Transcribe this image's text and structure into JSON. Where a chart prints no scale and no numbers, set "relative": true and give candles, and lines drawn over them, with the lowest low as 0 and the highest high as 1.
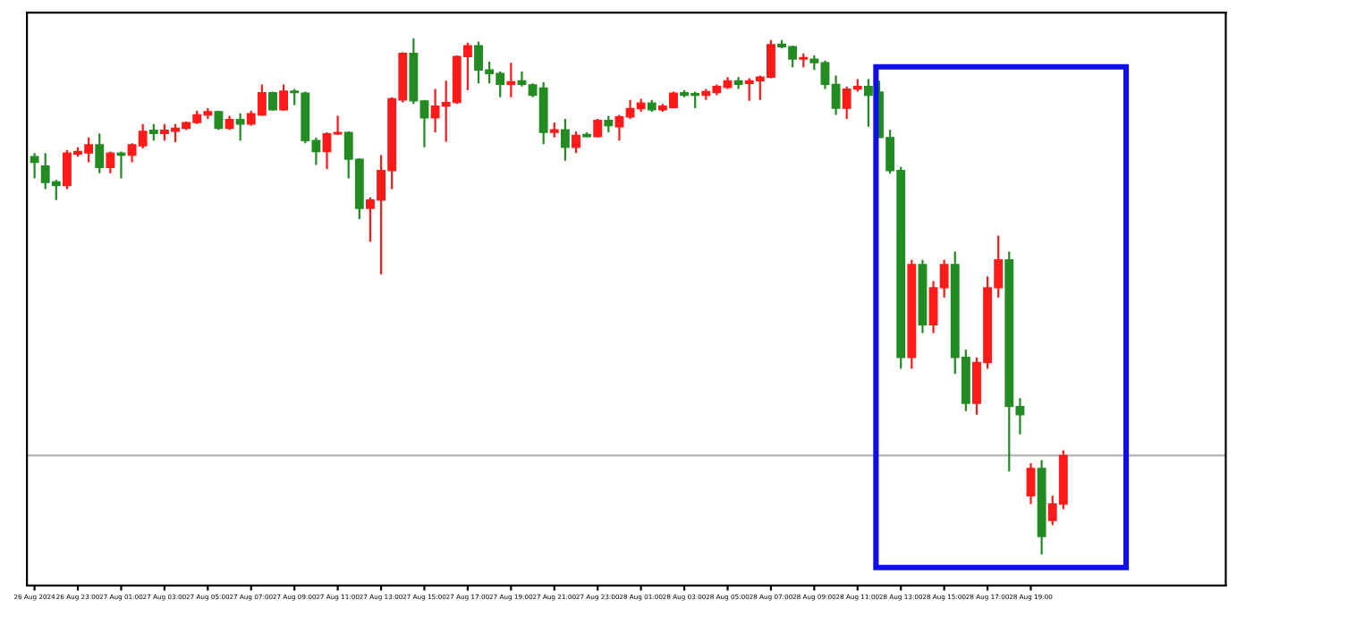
{
  "chart_data": {
    "type": "candlestick",
    "relative": true,
    "categories": [
      "26 Aug 2024",
      null,
      null,
      null,
      "26 Aug 23:00",
      null,
      null,
      null,
      "27 Aug 01:00",
      null,
      null,
      null,
      "27 Aug 03:00",
      null,
      null,
      null,
      "27 Aug 05:00",
      null,
      null,
      null,
      "27 Aug 07:00",
      null,
      null,
      null,
      "27 Aug 09:00",
      null,
      null,
      null,
      "27 Aug 11:00",
      null,
      null,
      null,
      "27 Aug 13:00",
      null,
      null,
      null,
      "27 Aug 15:00",
      null,
      null,
      null,
      "27 Aug 17:00",
      null,
      null,
      null,
      "27 Aug 19:00",
      null,
      null,
      null,
      "27 Aug 21:00",
      null,
      null,
      null,
      "27 Aug 23:00",
      null,
      null,
      null,
      "28 Aug 01:00",
      null,
      null,
      null,
      "28 Aug 03:00",
      null,
      null,
      null,
      "28 Aug 05:00",
      null,
      null,
      null,
      "28 Aug 07:00",
      null,
      null,
      null,
      "28 Aug 09:00",
      null,
      null,
      null,
      "28 Aug 11:00",
      null,
      null,
      null,
      "28 Aug 13:00",
      null,
      null,
      null,
      "28 Aug 15:00",
      null,
      null,
      null,
      "28 Aug 17:00",
      null,
      null,
      null,
      "28 Aug 19:00",
      null,
      null,
      null
    ],
    "ohlc": [
      [
        0.771,
        0.778,
        0.729,
        0.76
      ],
      [
        0.753,
        0.778,
        0.708,
        0.721
      ],
      [
        0.722,
        0.726,
        0.687,
        0.715
      ],
      [
        0.715,
        0.784,
        0.708,
        0.778
      ],
      [
        0.776,
        0.789,
        0.771,
        0.781
      ],
      [
        0.778,
        0.808,
        0.76,
        0.794
      ],
      [
        0.794,
        0.816,
        0.739,
        0.75
      ],
      [
        0.75,
        0.781,
        0.739,
        0.778
      ],
      [
        0.778,
        0.781,
        0.729,
        0.774
      ],
      [
        0.774,
        0.797,
        0.76,
        0.794
      ],
      [
        0.792,
        0.834,
        0.787,
        0.82
      ],
      [
        0.822,
        0.834,
        0.802,
        0.816
      ],
      [
        0.816,
        0.834,
        0.802,
        0.822
      ],
      [
        0.82,
        0.834,
        0.799,
        0.826
      ],
      [
        0.826,
        0.839,
        0.823,
        0.837
      ],
      [
        0.837,
        0.86,
        0.834,
        0.852
      ],
      [
        0.852,
        0.865,
        0.844,
        0.858
      ],
      [
        0.858,
        0.86,
        0.823,
        0.826
      ],
      [
        0.826,
        0.85,
        0.823,
        0.843
      ],
      [
        0.843,
        0.855,
        0.802,
        0.834
      ],
      [
        0.834,
        0.86,
        0.831,
        0.854
      ],
      [
        0.852,
        0.911,
        0.85,
        0.895
      ],
      [
        0.895,
        0.897,
        0.86,
        0.862
      ],
      [
        0.862,
        0.911,
        0.86,
        0.898
      ],
      [
        0.898,
        0.902,
        0.871,
        0.895
      ],
      [
        0.894,
        0.897,
        0.797,
        0.802
      ],
      [
        0.802,
        0.808,
        0.755,
        0.781
      ],
      [
        0.781,
        0.818,
        0.747,
        0.815
      ],
      [
        0.815,
        0.85,
        0.813,
        0.818
      ],
      [
        0.818,
        0.82,
        0.729,
        0.766
      ],
      [
        0.766,
        0.768,
        0.65,
        0.671
      ],
      [
        0.671,
        0.692,
        0.606,
        0.687
      ],
      [
        0.687,
        0.774,
        0.543,
        0.744
      ],
      [
        0.744,
        0.886,
        0.708,
        0.883
      ],
      [
        0.881,
        0.973,
        0.876,
        0.971
      ],
      [
        0.971,
        1.0,
        0.873,
        0.879
      ],
      [
        0.879,
        0.881,
        0.789,
        0.846
      ],
      [
        0.846,
        0.902,
        0.818,
        0.869
      ],
      [
        0.869,
        0.918,
        0.8,
        0.876
      ],
      [
        0.876,
        0.967,
        0.873,
        0.965
      ],
      [
        0.965,
        0.992,
        0.9,
        0.986
      ],
      [
        0.986,
        0.994,
        0.913,
        0.939
      ],
      [
        0.939,
        0.955,
        0.913,
        0.932
      ],
      [
        0.932,
        0.936,
        0.886,
        0.911
      ],
      [
        0.911,
        0.953,
        0.886,
        0.916
      ],
      [
        0.918,
        0.936,
        0.907,
        0.911
      ],
      [
        0.91,
        0.913,
        0.886,
        0.89
      ],
      [
        0.904,
        0.915,
        0.795,
        0.818
      ],
      [
        0.818,
        0.837,
        0.808,
        0.823
      ],
      [
        0.823,
        0.844,
        0.763,
        0.789
      ],
      [
        0.789,
        0.82,
        0.778,
        0.812
      ],
      [
        0.814,
        0.818,
        0.808,
        0.81
      ],
      [
        0.81,
        0.844,
        0.808,
        0.841
      ],
      [
        0.841,
        0.85,
        0.818,
        0.831
      ],
      [
        0.829,
        0.852,
        0.802,
        0.848
      ],
      [
        0.848,
        0.881,
        0.844,
        0.864
      ],
      [
        0.864,
        0.883,
        0.858,
        0.875
      ],
      [
        0.875,
        0.881,
        0.858,
        0.862
      ],
      [
        0.862,
        0.873,
        0.858,
        0.869
      ],
      [
        0.866,
        0.897,
        0.865,
        0.894
      ],
      [
        0.895,
        0.9,
        0.886,
        0.89
      ],
      [
        0.892,
        0.897,
        0.865,
        0.89
      ],
      [
        0.89,
        0.902,
        0.881,
        0.897
      ],
      [
        0.895,
        0.911,
        0.89,
        0.907
      ],
      [
        0.905,
        0.925,
        0.902,
        0.918
      ],
      [
        0.918,
        0.925,
        0.902,
        0.911
      ],
      [
        0.913,
        0.923,
        0.879,
        0.918
      ],
      [
        0.918,
        0.928,
        0.881,
        0.925
      ],
      [
        0.925,
        0.997,
        0.923,
        0.988
      ],
      [
        0.989,
        0.997,
        0.981,
        0.984
      ],
      [
        0.984,
        0.986,
        0.944,
        0.96
      ],
      [
        0.96,
        0.971,
        0.944,
        0.963
      ],
      [
        0.96,
        0.967,
        0.939,
        0.953
      ],
      [
        0.953,
        0.957,
        0.902,
        0.911
      ],
      [
        0.911,
        0.928,
        0.852,
        0.865
      ],
      [
        0.865,
        0.907,
        0.844,
        0.902
      ],
      [
        0.902,
        0.921,
        0.897,
        0.907
      ],
      [
        0.907,
        0.921,
        0.829,
        0.89
      ],
      [
        0.896,
        0.918,
        0.808,
        0.808
      ],
      [
        0.808,
        0.823,
        0.738,
        0.744
      ],
      [
        0.744,
        0.751,
        0.36,
        0.382
      ],
      [
        0.382,
        0.571,
        0.36,
        0.562
      ],
      [
        0.562,
        0.571,
        0.429,
        0.445
      ],
      [
        0.445,
        0.53,
        0.429,
        0.517
      ],
      [
        0.517,
        0.571,
        0.498,
        0.562
      ],
      [
        0.562,
        0.587,
        0.35,
        0.382
      ],
      [
        0.382,
        0.397,
        0.278,
        0.293
      ],
      [
        0.293,
        0.382,
        0.271,
        0.372
      ],
      [
        0.372,
        0.539,
        0.36,
        0.517
      ],
      [
        0.517,
        0.618,
        0.498,
        0.571
      ],
      [
        0.571,
        0.587,
        0.161,
        0.287
      ],
      [
        0.287,
        0.303,
        0.233,
        0.271
      ],
      [
        0.114,
        0.177,
        0.098,
        0.167
      ],
      [
        0.167,
        0.183,
        0.0,
        0.035
      ],
      [
        0.066,
        0.114,
        0.057,
        0.098
      ],
      [
        0.098,
        0.202,
        0.088,
        0.192
      ]
    ],
    "colors": [
      "#228b22",
      "#228b22",
      "#228b22",
      "#ff1a1a",
      "#ff1a1a",
      "#ff1a1a",
      "#228b22",
      "#ff1a1a",
      "#228b22",
      "#ff1a1a",
      "#ff1a1a",
      "#228b22",
      "#ff1a1a",
      "#ff1a1a",
      "#ff1a1a",
      "#ff1a1a",
      "#ff1a1a",
      "#228b22",
      "#ff1a1a",
      "#228b22",
      "#ff1a1a",
      "#ff1a1a",
      "#228b22",
      "#ff1a1a",
      "#228b22",
      "#228b22",
      "#228b22",
      "#ff1a1a",
      "#ff1a1a",
      "#228b22",
      "#228b22",
      "#ff1a1a",
      "#ff1a1a",
      "#ff1a1a",
      "#ff1a1a",
      "#228b22",
      "#228b22",
      "#ff1a1a",
      "#ff1a1a",
      "#ff1a1a",
      "#ff1a1a",
      "#228b22",
      "#228b22",
      "#228b22",
      "#ff1a1a",
      "#228b22",
      "#228b22",
      "#228b22",
      "#ff1a1a",
      "#228b22",
      "#ff1a1a",
      "#228b22",
      "#ff1a1a",
      "#228b22",
      "#ff1a1a",
      "#ff1a1a",
      "#ff1a1a",
      "#228b22",
      "#ff1a1a",
      "#ff1a1a",
      "#228b22",
      "#228b22",
      "#ff1a1a",
      "#ff1a1a",
      "#ff1a1a",
      "#228b22",
      "#ff1a1a",
      "#ff1a1a",
      "#ff1a1a",
      "#228b22",
      "#228b22",
      "#ff1a1a",
      "#228b22",
      "#228b22",
      "#228b22",
      "#ff1a1a",
      "#ff1a1a",
      "#228b22",
      "#228b22",
      "#228b22",
      "#228b22",
      "#ff1a1a",
      "#228b22",
      "#ff1a1a",
      "#ff1a1a",
      "#228b22",
      "#228b22",
      "#ff1a1a",
      "#ff1a1a",
      "#ff1a1a",
      "#228b22",
      "#228b22",
      "#ff1a1a",
      "#228b22",
      "#ff1a1a",
      "#ff1a1a"
    ],
    "ref_lines": [
      {
        "axis": "y",
        "value": 0.192,
        "color": "#b4b4b4"
      }
    ],
    "grid": false
  }
}
